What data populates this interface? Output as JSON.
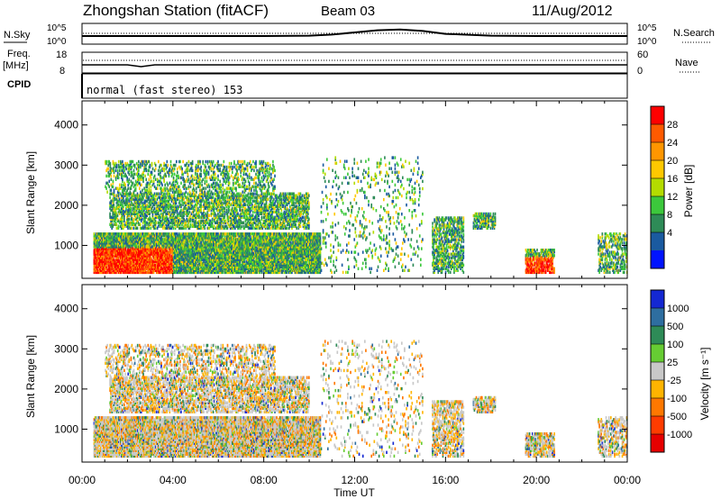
{
  "header": {
    "title": "Zhongshan Station (fitACF)",
    "beam": "Beam 03",
    "date": "11/Aug/2012"
  },
  "chart_data": [
    {
      "type": "line",
      "panel": "noise",
      "left_label": "N.Sky",
      "right_label": "N.Search",
      "left_ticks": [
        "10^5",
        "10^0"
      ],
      "right_ticks": [
        "10^5",
        "10^0"
      ],
      "note": "approximate log-level sky noise trace",
      "x_hours": [
        0,
        1,
        2,
        4,
        6,
        8,
        10,
        11,
        12,
        13,
        14,
        15,
        16,
        18,
        20,
        22,
        24
      ],
      "values": [
        2.0,
        2.0,
        2.0,
        2.0,
        2.0,
        2.0,
        2.1,
        2.4,
        3.0,
        3.6,
        3.8,
        3.4,
        2.6,
        2.1,
        2.0,
        2.0,
        2.0
      ]
    },
    {
      "type": "line",
      "panel": "frequency",
      "left_label": "Freq.",
      "left_unit": "[MHz]",
      "left_ticks": [
        "18",
        "8"
      ],
      "right_label": "Nave",
      "right_ticks": [
        "60",
        "0"
      ],
      "x_hours": [
        0,
        2,
        2.6,
        2.9,
        3.2,
        4,
        8,
        12,
        16,
        20,
        24
      ],
      "values": [
        12,
        12,
        11,
        11.5,
        12,
        12,
        12,
        12,
        12,
        12,
        12
      ]
    },
    {
      "type": "table",
      "panel": "cpid",
      "label": "CPID",
      "mode_text": "normal (fast stereo) 153"
    },
    {
      "type": "heatmap",
      "panel": "power",
      "ylabel": "Slant Range [km]",
      "yticks": [
        1000,
        2000,
        3000,
        4000
      ],
      "ylim": [
        180,
        4600
      ],
      "xlim": [
        0,
        24
      ],
      "colorbar_label": "Power [dB]",
      "colorbar_ticks": [
        "28",
        "24",
        "20",
        "16",
        "12",
        "8",
        "4"
      ],
      "colorbar_colors": [
        "#ff0000",
        "#ff5a00",
        "#ff9600",
        "#ffc800",
        "#b4dc00",
        "#3cc83c",
        "#2e8b57",
        "#1a5aa0",
        "#0014ff"
      ],
      "blobs": [
        {
          "t0": 0.5,
          "t1": 10.5,
          "r0": 300,
          "r1": 1300,
          "density": 0.9
        },
        {
          "t0": 1.2,
          "t1": 10.0,
          "r0": 1400,
          "r1": 2300,
          "density": 0.55
        },
        {
          "t0": 1.0,
          "t1": 8.5,
          "r0": 2300,
          "r1": 3100,
          "density": 0.3
        },
        {
          "t0": 15.4,
          "t1": 16.8,
          "r0": 300,
          "r1": 1700,
          "density": 0.5
        },
        {
          "t0": 17.2,
          "t1": 18.2,
          "r0": 1400,
          "r1": 1800,
          "density": 0.6
        },
        {
          "t0": 19.5,
          "t1": 20.8,
          "r0": 300,
          "r1": 900,
          "density": 0.7
        },
        {
          "t0": 22.7,
          "t1": 24.0,
          "r0": 300,
          "r1": 1300,
          "density": 0.4
        },
        {
          "t0": 10.5,
          "t1": 15.0,
          "r0": 300,
          "r1": 3200,
          "density": 0.08
        }
      ]
    },
    {
      "type": "heatmap",
      "panel": "velocity",
      "ylabel": "Slant Range [km]",
      "yticks": [
        1000,
        2000,
        3000,
        4000
      ],
      "ylim": [
        180,
        4600
      ],
      "xlim": [
        0,
        24
      ],
      "xticks": [
        "00:00",
        "04:00",
        "08:00",
        "12:00",
        "16:00",
        "20:00",
        "00:00"
      ],
      "xlabel": "Time UT",
      "colorbar_label": "Velocity [m s⁻¹]",
      "colorbar_ticks": [
        "1000",
        "500",
        "100",
        "25",
        "-25",
        "-100",
        "-500",
        "-1000"
      ],
      "colorbar_colors": [
        "#1428d2",
        "#2e6ea0",
        "#2e8b57",
        "#66cc33",
        "#c8c8c8",
        "#ffb400",
        "#ff7800",
        "#ff3c00",
        "#e60000"
      ],
      "blobs": [
        {
          "t0": 0.5,
          "t1": 10.5,
          "r0": 300,
          "r1": 1300,
          "density": 0.9
        },
        {
          "t0": 1.2,
          "t1": 10.0,
          "r0": 1400,
          "r1": 2300,
          "density": 0.55
        },
        {
          "t0": 1.0,
          "t1": 8.5,
          "r0": 2300,
          "r1": 3100,
          "density": 0.3
        },
        {
          "t0": 15.4,
          "t1": 16.8,
          "r0": 300,
          "r1": 1700,
          "density": 0.5
        },
        {
          "t0": 17.2,
          "t1": 18.2,
          "r0": 1400,
          "r1": 1800,
          "density": 0.6
        },
        {
          "t0": 19.5,
          "t1": 20.8,
          "r0": 300,
          "r1": 900,
          "density": 0.7
        },
        {
          "t0": 22.7,
          "t1": 24.0,
          "r0": 300,
          "r1": 1300,
          "density": 0.4
        },
        {
          "t0": 10.5,
          "t1": 15.0,
          "r0": 300,
          "r1": 3200,
          "density": 0.08
        }
      ]
    }
  ]
}
